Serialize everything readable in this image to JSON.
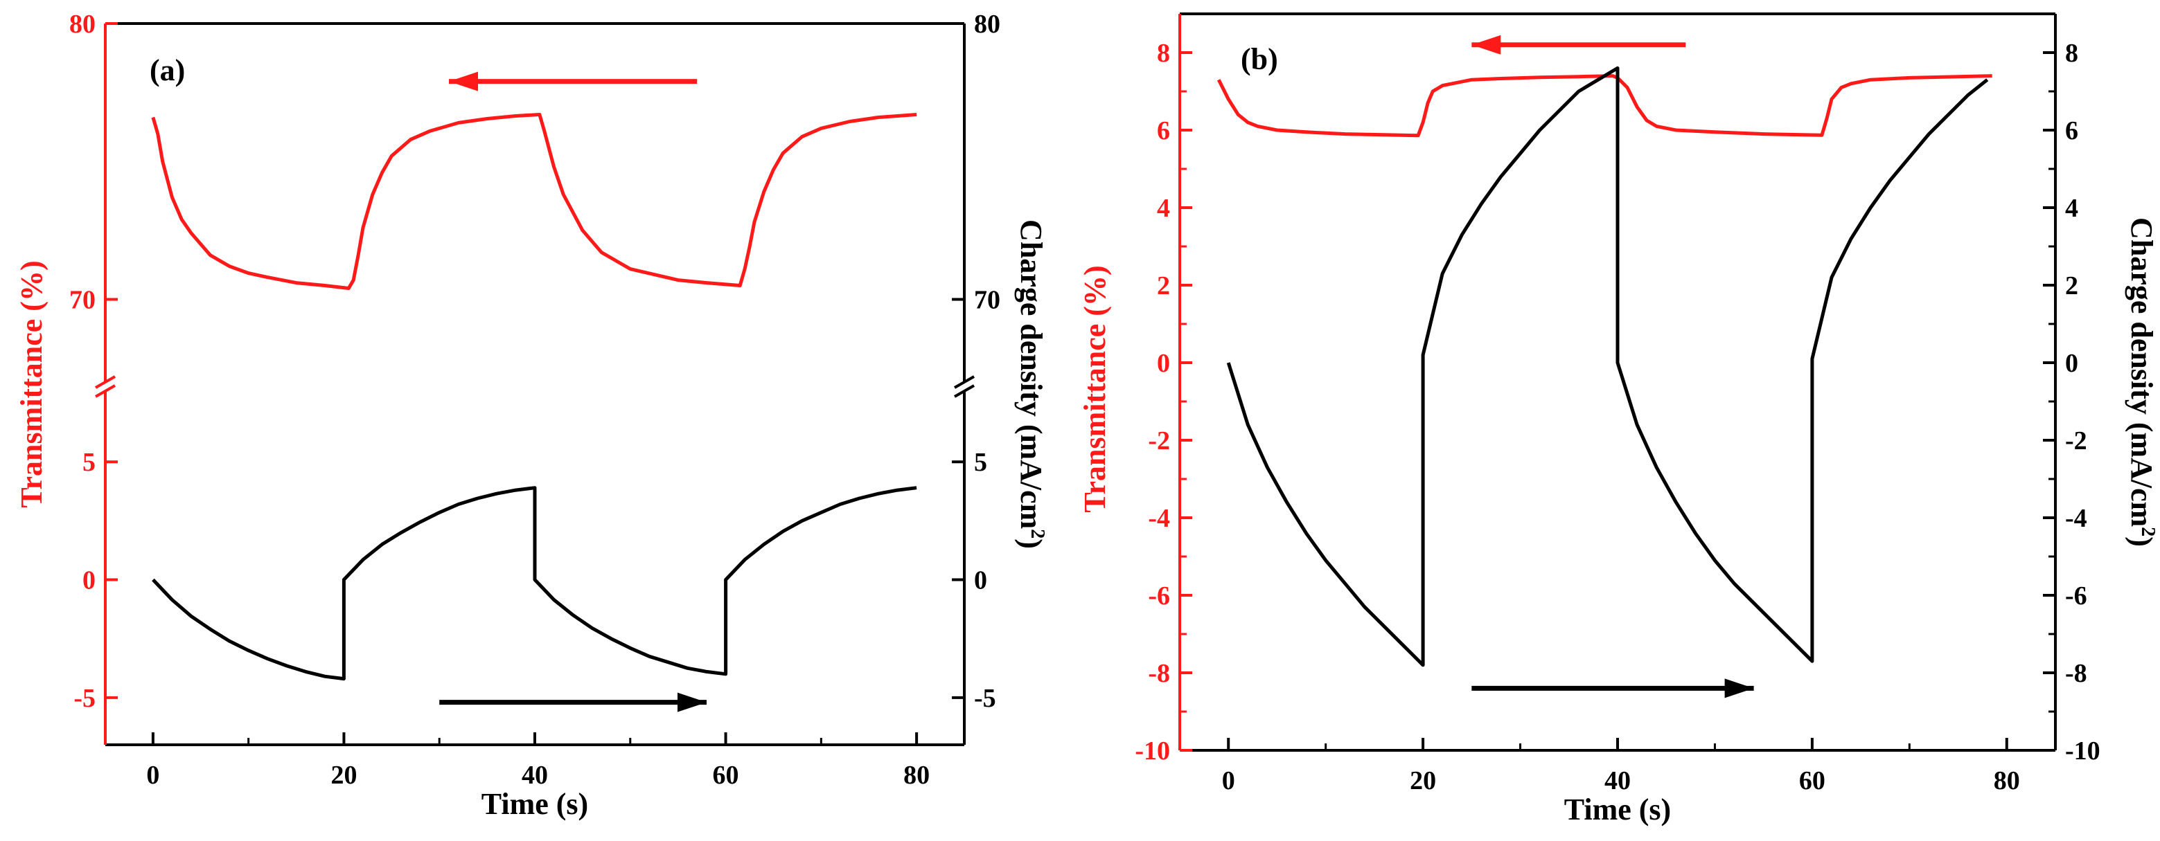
{
  "colors": {
    "red": "#ff1a1a",
    "black": "#000000"
  },
  "chart_data": [
    {
      "id": "a",
      "type": "line",
      "panel_label": "(a)",
      "xlabel": "Time (s)",
      "ylabel_left": "Transmittance (%)",
      "ylabel_right_parts": [
        "Charge density (mA/cm",
        "2",
        ")"
      ],
      "xlim": [
        -5,
        85
      ],
      "x_ticks": [
        0,
        20,
        40,
        60,
        80
      ],
      "x_tick_labels": [
        "0",
        "20",
        "40",
        "60",
        "80"
      ],
      "broken_axis": true,
      "upper": {
        "ylim": [
          67,
          80
        ],
        "left_ticks": [
          70,
          80
        ],
        "left_tick_labels": [
          "70",
          "80"
        ],
        "right_ticks": [
          70,
          80
        ],
        "right_tick_labels": [
          "70",
          "80"
        ]
      },
      "lower": {
        "ylim": [
          -7,
          8
        ],
        "left_ticks": [
          -5,
          0,
          5
        ],
        "left_tick_labels": [
          "-5",
          "0",
          "5"
        ],
        "right_ticks": [
          -5,
          0,
          5
        ],
        "right_tick_labels": [
          "-5",
          "0",
          "5"
        ]
      },
      "series": [
        {
          "name": "Transmittance",
          "axis": "left",
          "segment": "upper",
          "color": "#ff1a1a",
          "x": [
            0,
            0.5,
            1,
            2,
            3,
            4,
            5,
            6,
            8,
            10,
            12,
            15,
            18,
            20.5,
            21,
            21.5,
            22,
            23,
            24,
            25,
            27,
            29,
            32,
            35,
            38,
            40.5,
            41,
            42,
            43,
            45,
            47,
            50,
            55,
            58,
            61.5,
            62,
            62.5,
            63,
            64,
            65,
            66,
            68,
            70,
            73,
            76,
            80
          ],
          "y": [
            76.6,
            76.0,
            75.0,
            73.7,
            72.9,
            72.4,
            72.0,
            71.6,
            71.2,
            70.95,
            70.8,
            70.6,
            70.5,
            70.4,
            70.7,
            71.6,
            72.6,
            73.8,
            74.6,
            75.2,
            75.8,
            76.1,
            76.4,
            76.55,
            76.65,
            76.7,
            76.1,
            74.8,
            73.8,
            72.5,
            71.7,
            71.1,
            70.7,
            70.6,
            70.5,
            71.1,
            71.9,
            72.8,
            73.9,
            74.7,
            75.3,
            75.9,
            76.2,
            76.45,
            76.6,
            76.7
          ]
        },
        {
          "name": "Charge density",
          "axis": "right",
          "segment": "lower",
          "color": "#000000",
          "x": [
            0,
            2,
            4,
            6,
            8,
            10,
            12,
            14,
            16,
            18,
            20,
            20,
            22,
            24,
            26,
            28,
            30,
            32,
            34,
            36,
            38,
            40,
            40,
            42,
            44,
            46,
            48,
            50,
            52,
            54,
            56,
            58,
            60,
            60,
            62,
            64,
            66,
            68,
            70,
            72,
            74,
            76,
            78,
            80
          ],
          "y": [
            0,
            -0.85,
            -1.55,
            -2.1,
            -2.6,
            -3.0,
            -3.35,
            -3.65,
            -3.9,
            -4.1,
            -4.2,
            0,
            0.85,
            1.5,
            2.0,
            2.45,
            2.85,
            3.2,
            3.45,
            3.65,
            3.8,
            3.9,
            0,
            -0.85,
            -1.5,
            -2.05,
            -2.5,
            -2.9,
            -3.25,
            -3.5,
            -3.75,
            -3.9,
            -4.0,
            0,
            0.85,
            1.5,
            2.05,
            2.5,
            2.85,
            3.2,
            3.45,
            3.65,
            3.8,
            3.9
          ]
        }
      ],
      "arrows": [
        {
          "color": "#ff1a1a",
          "direction": "left",
          "from": [
            57,
            77.9
          ],
          "to": [
            31,
            77.9
          ],
          "axis": "upper-left"
        },
        {
          "color": "#000000",
          "direction": "right",
          "from": [
            30,
            -5.2
          ],
          "to": [
            58,
            -5.2
          ],
          "axis": "lower-right"
        }
      ]
    },
    {
      "id": "b",
      "type": "line",
      "panel_label": "(b)",
      "xlabel": "Time (s)",
      "ylabel_left": "Transmittance (%)",
      "ylabel_right_parts": [
        "Charge density (mA/cm",
        "2",
        ")"
      ],
      "xlim": [
        -5,
        85
      ],
      "x_ticks": [
        0,
        20,
        40,
        60,
        80
      ],
      "x_tick_labels": [
        "0",
        "20",
        "40",
        "60",
        "80"
      ],
      "broken_axis": false,
      "ylim": [
        -10,
        9
      ],
      "left_ticks": [
        -10,
        -8,
        -6,
        -4,
        -2,
        0,
        2,
        4,
        6,
        8
      ],
      "left_tick_labels": [
        "-10",
        "-8",
        "-6",
        "-4",
        "-2",
        "0",
        "2",
        "4",
        "6",
        "8"
      ],
      "right_ticks": [
        -10,
        -8,
        -6,
        -4,
        -2,
        0,
        2,
        4,
        6,
        8
      ],
      "right_tick_labels": [
        "-10",
        "-8",
        "-6",
        "-4",
        "-2",
        "0",
        "2",
        "4",
        "6",
        "8"
      ],
      "series": [
        {
          "name": "Transmittance",
          "axis": "left",
          "color": "#ff1a1a",
          "x": [
            -1,
            0,
            1,
            2,
            3,
            5,
            8,
            12,
            16,
            19.5,
            20,
            20.5,
            21,
            22,
            23,
            25,
            28,
            32,
            36,
            39.5,
            40,
            41,
            42,
            43,
            44,
            46,
            50,
            55,
            59,
            61,
            61.5,
            62,
            63,
            64,
            66,
            70,
            75,
            78.5
          ],
          "y": [
            7.3,
            6.8,
            6.4,
            6.2,
            6.1,
            6.0,
            5.95,
            5.9,
            5.88,
            5.86,
            6.2,
            6.7,
            7.0,
            7.15,
            7.2,
            7.3,
            7.33,
            7.36,
            7.38,
            7.4,
            7.35,
            7.1,
            6.6,
            6.25,
            6.1,
            6.0,
            5.95,
            5.9,
            5.88,
            5.87,
            6.3,
            6.8,
            7.1,
            7.2,
            7.3,
            7.35,
            7.38,
            7.4
          ]
        },
        {
          "name": "Charge density",
          "axis": "right",
          "color": "#000000",
          "x": [
            0,
            2,
            4,
            6,
            8,
            10,
            12,
            14,
            16,
            18,
            20,
            20,
            22,
            24,
            26,
            28,
            30,
            32,
            34,
            36,
            38,
            40,
            40,
            42,
            44,
            46,
            48,
            50,
            52,
            54,
            56,
            58,
            60,
            60,
            62,
            64,
            66,
            68,
            70,
            72,
            74,
            76,
            78
          ],
          "y": [
            0,
            -1.6,
            -2.7,
            -3.6,
            -4.4,
            -5.1,
            -5.7,
            -6.3,
            -6.8,
            -7.3,
            -7.8,
            0.2,
            2.3,
            3.3,
            4.1,
            4.8,
            5.4,
            6.0,
            6.5,
            7.0,
            7.3,
            7.6,
            0,
            -1.6,
            -2.7,
            -3.6,
            -4.4,
            -5.1,
            -5.7,
            -6.2,
            -6.7,
            -7.2,
            -7.7,
            0.1,
            2.2,
            3.2,
            4.0,
            4.7,
            5.3,
            5.9,
            6.4,
            6.9,
            7.3
          ]
        }
      ],
      "arrows": [
        {
          "color": "#ff1a1a",
          "direction": "left",
          "from": [
            47,
            8.2
          ],
          "to": [
            25,
            8.2
          ],
          "axis": "left"
        },
        {
          "color": "#000000",
          "direction": "right",
          "from": [
            25,
            -8.4
          ],
          "to": [
            54,
            -8.4
          ],
          "axis": "right"
        }
      ]
    }
  ]
}
